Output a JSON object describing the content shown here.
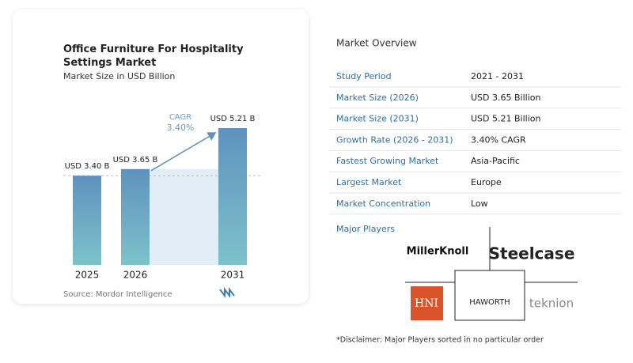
{
  "chart_data": {
    "type": "bar",
    "title": "Office Furniture For Hospitality Settings Market",
    "subtitle": "Market Size in USD Billion",
    "categories": [
      "2025",
      "2026",
      "2031"
    ],
    "values": [
      3.4,
      3.65,
      5.21
    ],
    "value_labels": [
      "USD 3.40 B",
      "USD 3.65 B",
      "USD 5.21 B"
    ],
    "annotation": {
      "label": "CAGR",
      "value": "3.40%"
    },
    "color": "#5f92bd",
    "source": "Source: Mordor Intelligence"
  },
  "market_overview": {
    "title": "Market Overview",
    "rows": [
      [
        "Study Period",
        "2021 - 2031"
      ],
      [
        "Market Size (2026)",
        "USD 3.65 Billion"
      ],
      [
        "Market Size (2031)",
        "USD 5.21 Billion"
      ],
      [
        "Growth Rate (2026 - 2031)",
        "3.40% CAGR"
      ],
      [
        "Fastest Growing Market",
        "Asia-Pacific"
      ],
      [
        "Largest Market",
        "Europe"
      ],
      [
        "Market Concentration",
        "Low"
      ]
    ]
  },
  "major_players": {
    "title": "Major Players",
    "names": [
      "MillerKnoll",
      "Steelcase",
      "HNI",
      "HAWORTH",
      "teknion"
    ]
  },
  "disclaimer": "*Disclaimer: Major Players sorted in no particular order"
}
